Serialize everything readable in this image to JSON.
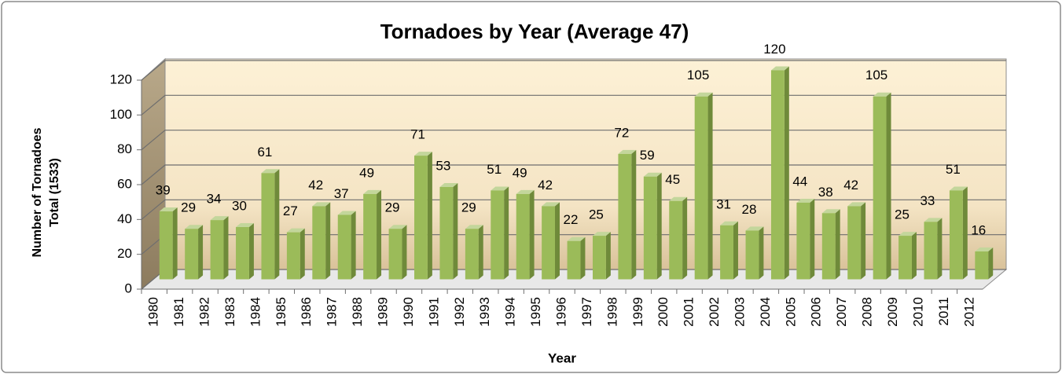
{
  "chart_data": {
    "type": "bar3d",
    "title": "Tornadoes by Year (Average 47)",
    "y_label": [
      "Number of Tornadoes",
      "Total (1533)"
    ],
    "x_label": "Year",
    "categories": [
      "1980",
      "1981",
      "1982",
      "1983",
      "1984",
      "1985",
      "1986",
      "1987",
      "1988",
      "1989",
      "1990",
      "1991",
      "1992",
      "1993",
      "1994",
      "1995",
      "1996",
      "1997",
      "1998",
      "1999",
      "2000",
      "2001",
      "2002",
      "2003",
      "2004",
      "2005",
      "2006",
      "2007",
      "2008",
      "2009",
      "2010",
      "2011",
      "2012"
    ],
    "values": [
      39,
      29,
      34,
      30,
      61,
      27,
      42,
      37,
      49,
      29,
      71,
      53,
      29,
      51,
      49,
      42,
      22,
      25,
      72,
      59,
      45,
      105,
      31,
      28,
      120,
      44,
      38,
      42,
      105,
      25,
      33,
      51,
      16
    ],
    "color": "#9bbb59",
    "ylim": [
      0,
      120
    ],
    "yticks": [
      0,
      20,
      40,
      60,
      80,
      100,
      120
    ],
    "grid": true
  }
}
